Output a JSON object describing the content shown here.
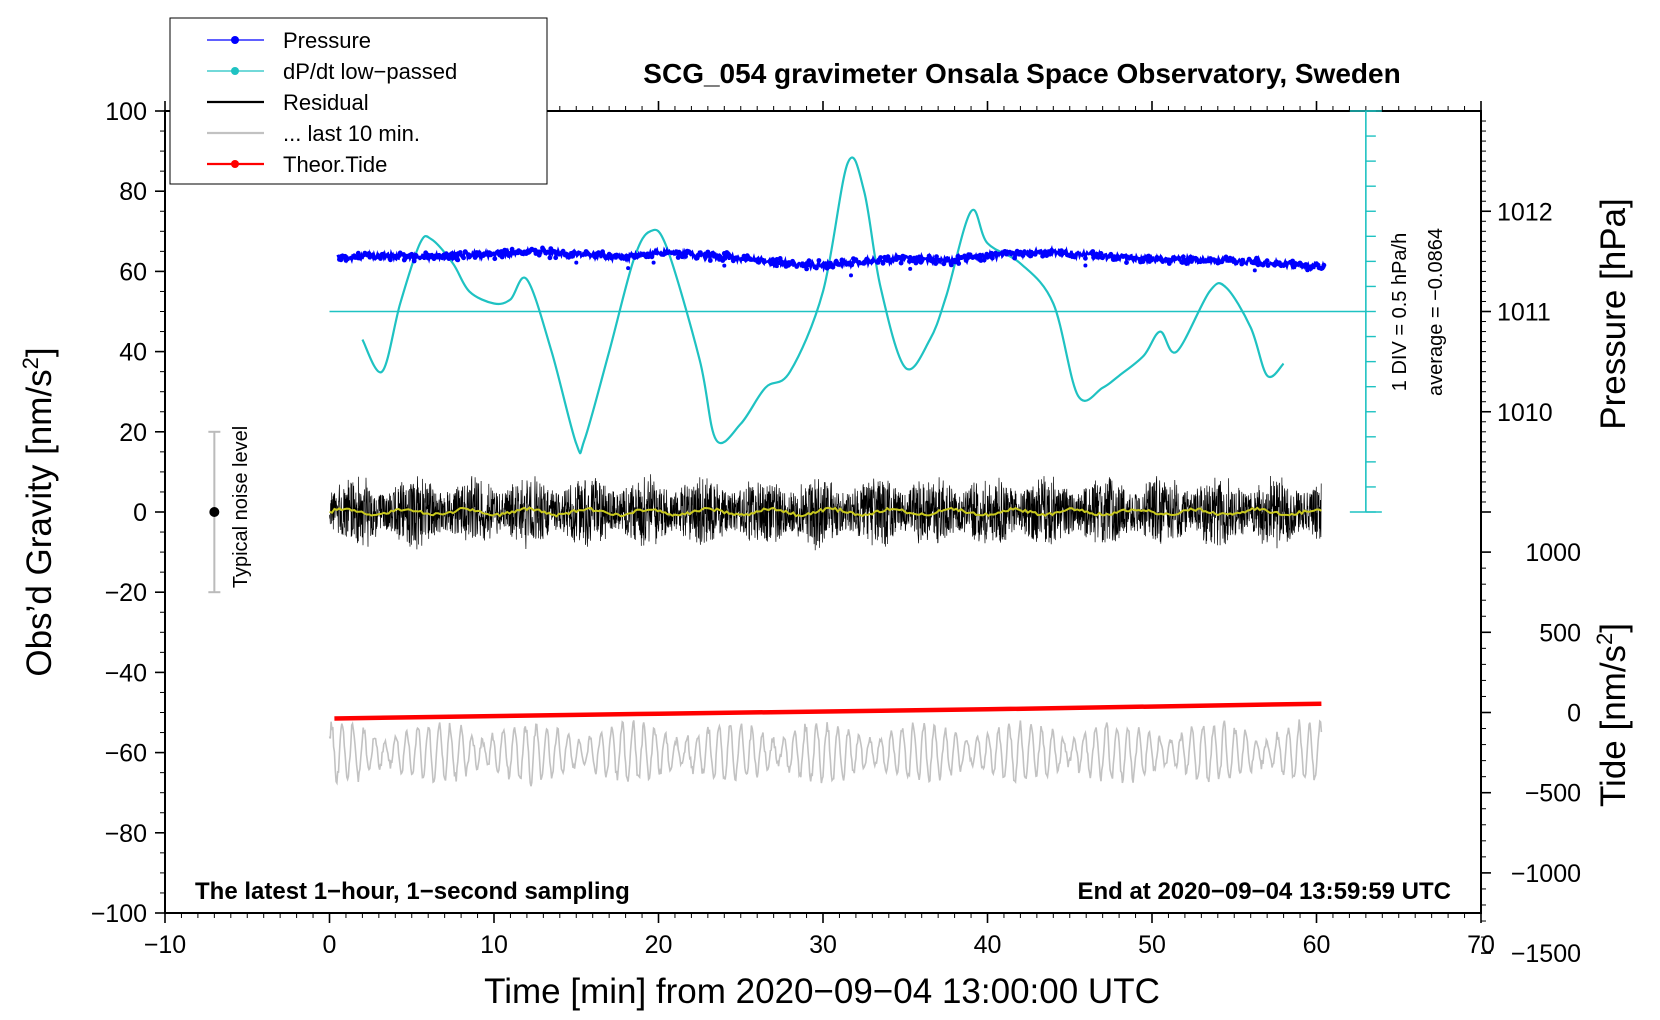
{
  "chart_data": {
    "type": "line",
    "title": "SCG_054 gravimeter Onsala Space Observatory, Sweden",
    "xlabel": "Time [min] from 2020−09−04 13:00:00 UTC",
    "ylabel_left_main": "Obs’d Gravity [nm/s",
    "ylabel_left_sup": "2",
    "ylabel_left_end": "]",
    "ylabel_right_pressure": "Pressure [hPa]",
    "ylabel_right_tide_main": "Tide [nm/s",
    "ylabel_right_tide_sup": "2",
    "ylabel_right_tide_end": "]",
    "xlim": [
      -10,
      70
    ],
    "ylim": [
      -100,
      100
    ],
    "x_ticks": [
      -10,
      0,
      10,
      20,
      30,
      40,
      50,
      60,
      70
    ],
    "x_tick_labels": [
      "−10",
      "0",
      "10",
      "20",
      "30",
      "40",
      "50",
      "60",
      "70"
    ],
    "y_ticks": [
      100,
      80,
      60,
      40,
      20,
      0,
      -20,
      -40,
      -60,
      -80,
      -100
    ],
    "y_tick_labels": [
      "100",
      "80",
      "60",
      "40",
      "20",
      "0",
      "−20",
      "−40",
      "−60",
      "−80",
      "−100"
    ],
    "pressure_axis": {
      "ticks": [
        1012,
        1011,
        1010
      ],
      "tick_labels": [
        "1012",
        "1011",
        "1010"
      ],
      "gravity_per_hPa": 25,
      "ref_hPa": 1011,
      "ref_gravity": 50
    },
    "tide_axis": {
      "ticks": [
        1000,
        500,
        0,
        -500,
        -1000,
        -1500
      ],
      "tick_labels": [
        "1000",
        "500",
        "0",
        "−500",
        "−1000",
        "−1500"
      ],
      "gravity_per_unit": 0.04,
      "ref_value": 0,
      "ref_gravity": -50
    },
    "dpdt_scale": {
      "label_div": "1 DIV = 0.5 hPa/h",
      "label_avg": "average = −0.0864",
      "x_position_min": 63,
      "baseline": 50,
      "top": 100,
      "bottom": 0
    },
    "noise_bar": {
      "label": "Typical noise level",
      "x": -7,
      "low": -20,
      "high": 20
    },
    "series": [
      {
        "name": "Pressure",
        "color": "#0000ff",
        "x": [
          0.5,
          3,
          6,
          9,
          12,
          15,
          18,
          20,
          22,
          25,
          28,
          30,
          32,
          35,
          38,
          41,
          44,
          47,
          50,
          53,
          56,
          58,
          60.5
        ],
        "y": [
          63.5,
          63.8,
          63.5,
          64.2,
          64.8,
          64.4,
          63.5,
          64.8,
          64.2,
          63.3,
          62.0,
          61.5,
          62.2,
          63.2,
          62.8,
          64.2,
          64.8,
          63.8,
          63.0,
          62.8,
          62.4,
          62.0,
          61.0
        ]
      },
      {
        "name": "dP/dt low−passed",
        "color": "#1fc2c2",
        "x": [
          2,
          3.2,
          4.3,
          5.5,
          6.2,
          7.5,
          8.5,
          10,
          11,
          12,
          13.5,
          15,
          15.5,
          17,
          18.5,
          19.5,
          20.5,
          22.5,
          23.5,
          25,
          26.5,
          28,
          30,
          31.5,
          32.5,
          33.5,
          35,
          36.5,
          37.5,
          39,
          40,
          42,
          44,
          45.5,
          47,
          48,
          49.5,
          50.5,
          51.5,
          53.5,
          54.5,
          56,
          57,
          58
        ],
        "y": [
          43,
          35,
          52,
          67,
          68,
          62,
          55,
          52,
          53,
          58,
          40,
          17,
          18,
          40,
          63,
          70,
          66,
          38,
          18,
          22,
          31,
          35,
          55,
          87,
          80,
          56,
          36,
          43,
          54,
          75,
          67,
          62,
          52,
          29,
          31,
          34,
          39,
          45,
          40,
          55,
          56,
          46,
          34,
          37
        ]
      },
      {
        "name": "Residual",
        "color": "#000000",
        "x": [
          0,
          60.3
        ],
        "y": [
          0,
          0
        ],
        "amplitude": 8
      },
      {
        "name": "... last 10 min.",
        "color": "#c2c2c2",
        "x": [
          0,
          60.3
        ],
        "y": [
          -60,
          -60
        ],
        "amplitude": 8
      },
      {
        "name": "Theor.Tide",
        "color": "#ff0000",
        "x": [
          0.3,
          20,
          40,
          60.3
        ],
        "y": [
          -51.5,
          -50.3,
          -49.2,
          -47.8
        ]
      }
    ],
    "annotations": {
      "left": "The latest 1−hour, 1−second sampling",
      "right": "End at 2020−09−04 13:59:59 UTC"
    }
  }
}
